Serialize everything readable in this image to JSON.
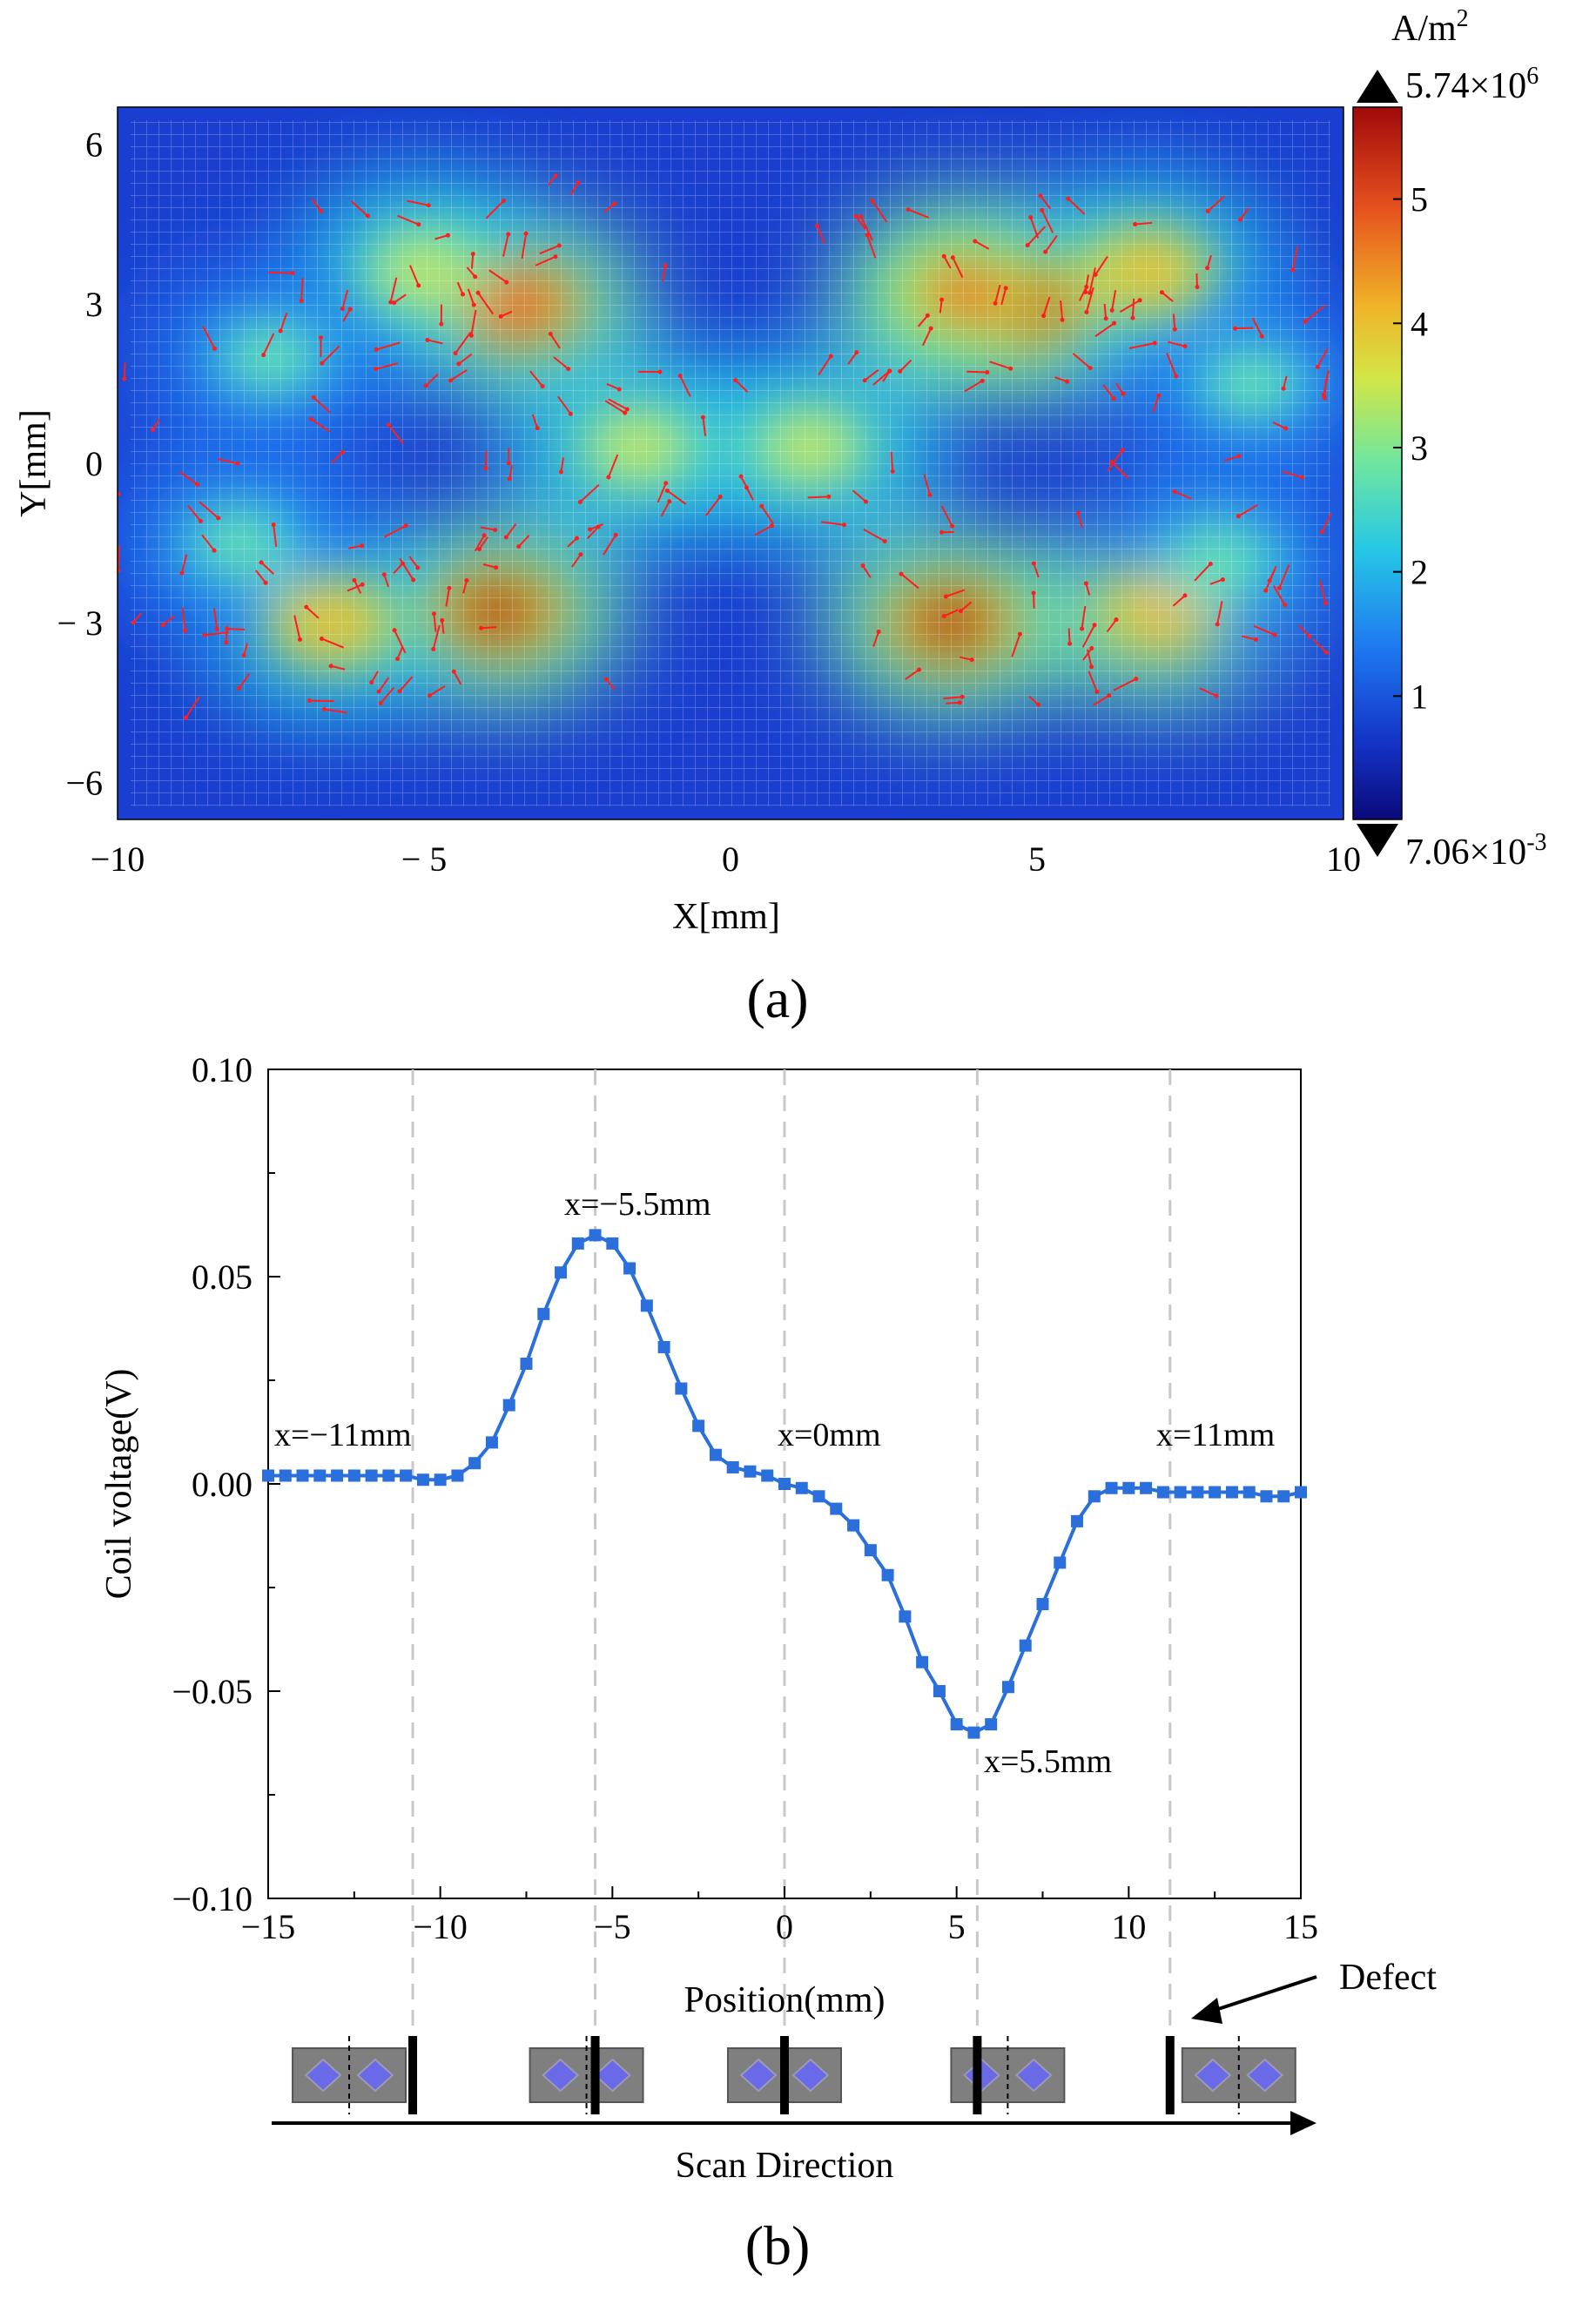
{
  "chart_data": [
    {
      "type": "heatmap",
      "panel_label": "(a)",
      "title": "",
      "xlabel": "X[mm]",
      "ylabel": "Y[mm]",
      "xlim": [
        -10,
        10
      ],
      "ylim": [
        -6.7,
        6.7
      ],
      "x_ticks": [
        "−10",
        "− 5",
        "0",
        "5",
        "10"
      ],
      "y_ticks": [
        "6",
        "3",
        "0",
        "− 3",
        "−6"
      ],
      "colorbar": {
        "unit": "A/m",
        "unit_sup": "2",
        "max_label": "5.74×10",
        "max_exp": "6",
        "min_label": "7.06×10",
        "min_exp": "-3",
        "ticks": [
          "5",
          "4",
          "3",
          "2",
          "1"
        ],
        "range": [
          0.00706,
          5.74
        ],
        "colors": [
          "#0a0a7a",
          "#1434c8",
          "#1e78f0",
          "#26c8e6",
          "#6ee6a0",
          "#d2e646",
          "#f0b428",
          "#e6501e",
          "#a00a0a"
        ]
      },
      "hotspots": [
        {
          "x": -3.5,
          "y": 3.0,
          "value": 5.3
        },
        {
          "x": -3.8,
          "y": -2.8,
          "value": 5.4
        },
        {
          "x": 4.8,
          "y": 3.0,
          "value": 5.5
        },
        {
          "x": 3.6,
          "y": -3.0,
          "value": 5.6
        },
        {
          "x": 3.8,
          "y": 3.2,
          "value": 4.8
        },
        {
          "x": 7.0,
          "y": -2.8,
          "value": 4.6
        },
        {
          "x": -6.5,
          "y": -3.0,
          "value": 4.2
        },
        {
          "x": -5.0,
          "y": 3.6,
          "value": 3.8
        },
        {
          "x": 6.8,
          "y": 3.6,
          "value": 4.4
        },
        {
          "x": -1.5,
          "y": 0.3,
          "value": 3.6
        },
        {
          "x": 1.3,
          "y": 0.3,
          "value": 3.6
        },
        {
          "x": -7.5,
          "y": 2.0,
          "value": 3.0
        },
        {
          "x": 8.5,
          "y": 1.5,
          "value": 2.8
        },
        {
          "x": 8.0,
          "y": -1.8,
          "value": 2.8
        },
        {
          "x": -8.0,
          "y": -1.5,
          "value": 2.8
        }
      ]
    },
    {
      "type": "line",
      "panel_label": "(b)",
      "title": "",
      "xlabel": "Position(mm)",
      "ylabel": "Coil voltage(V)",
      "xlim": [
        -15,
        15
      ],
      "ylim": [
        -0.1,
        0.1
      ],
      "x_ticks": [
        "−15",
        "−10",
        "−5",
        "0",
        "5",
        "10",
        "15"
      ],
      "y_ticks": [
        "0.10",
        "0.05",
        "0.00",
        "−0.05",
        "−0.10"
      ],
      "reference_lines_x": [
        -10.8,
        -5.5,
        0,
        5.6,
        11.2
      ],
      "series": [
        {
          "name": "Coil voltage",
          "color": "#2a6fdb",
          "x": [
            -15,
            -14.5,
            -14,
            -13.5,
            -13,
            -12.5,
            -12,
            -11.5,
            -11,
            -10.5,
            -10,
            -9.5,
            -9,
            -8.5,
            -8,
            -7.5,
            -7,
            -6.5,
            -6,
            -5.5,
            -5,
            -4.5,
            -4,
            -3.5,
            -3,
            -2.5,
            -2,
            -1.5,
            -1,
            -0.5,
            0,
            0.5,
            1,
            1.5,
            2,
            2.5,
            3,
            3.5,
            4,
            4.5,
            5,
            5.5,
            6,
            6.5,
            7,
            7.5,
            8,
            8.5,
            9,
            9.5,
            10,
            10.5,
            11,
            11.5,
            12,
            12.5,
            13,
            13.5,
            14,
            14.5,
            15
          ],
          "values": [
            0.002,
            0.002,
            0.002,
            0.002,
            0.002,
            0.002,
            0.002,
            0.002,
            0.002,
            0.001,
            0.001,
            0.002,
            0.005,
            0.01,
            0.019,
            0.029,
            0.041,
            0.051,
            0.058,
            0.06,
            0.058,
            0.052,
            0.043,
            0.033,
            0.023,
            0.014,
            0.007,
            0.004,
            0.003,
            0.002,
            0.0,
            -0.001,
            -0.003,
            -0.006,
            -0.01,
            -0.016,
            -0.022,
            -0.032,
            -0.043,
            -0.05,
            -0.058,
            -0.06,
            -0.058,
            -0.049,
            -0.039,
            -0.029,
            -0.019,
            -0.009,
            -0.003,
            -0.001,
            -0.001,
            -0.001,
            -0.002,
            -0.002,
            -0.002,
            -0.002,
            -0.002,
            -0.002,
            -0.003,
            -0.003,
            -0.002
          ]
        }
      ],
      "annotations": [
        {
          "text": "x=−11mm",
          "x": -11,
          "y": 0.002
        },
        {
          "text": "x=−5.5mm",
          "x": -5.5,
          "y": 0.06
        },
        {
          "text": "x=0mm",
          "x": 0,
          "y": 0.0
        },
        {
          "text": "x=5.5mm",
          "x": 5.5,
          "y": -0.06
        },
        {
          "text": "x=11mm",
          "x": 11,
          "y": -0.002
        }
      ],
      "probe_positions": [
        -11,
        -5.5,
        0,
        5.5,
        11
      ],
      "defect_label": "Defect",
      "scan_label": "Scan Direction"
    }
  ]
}
